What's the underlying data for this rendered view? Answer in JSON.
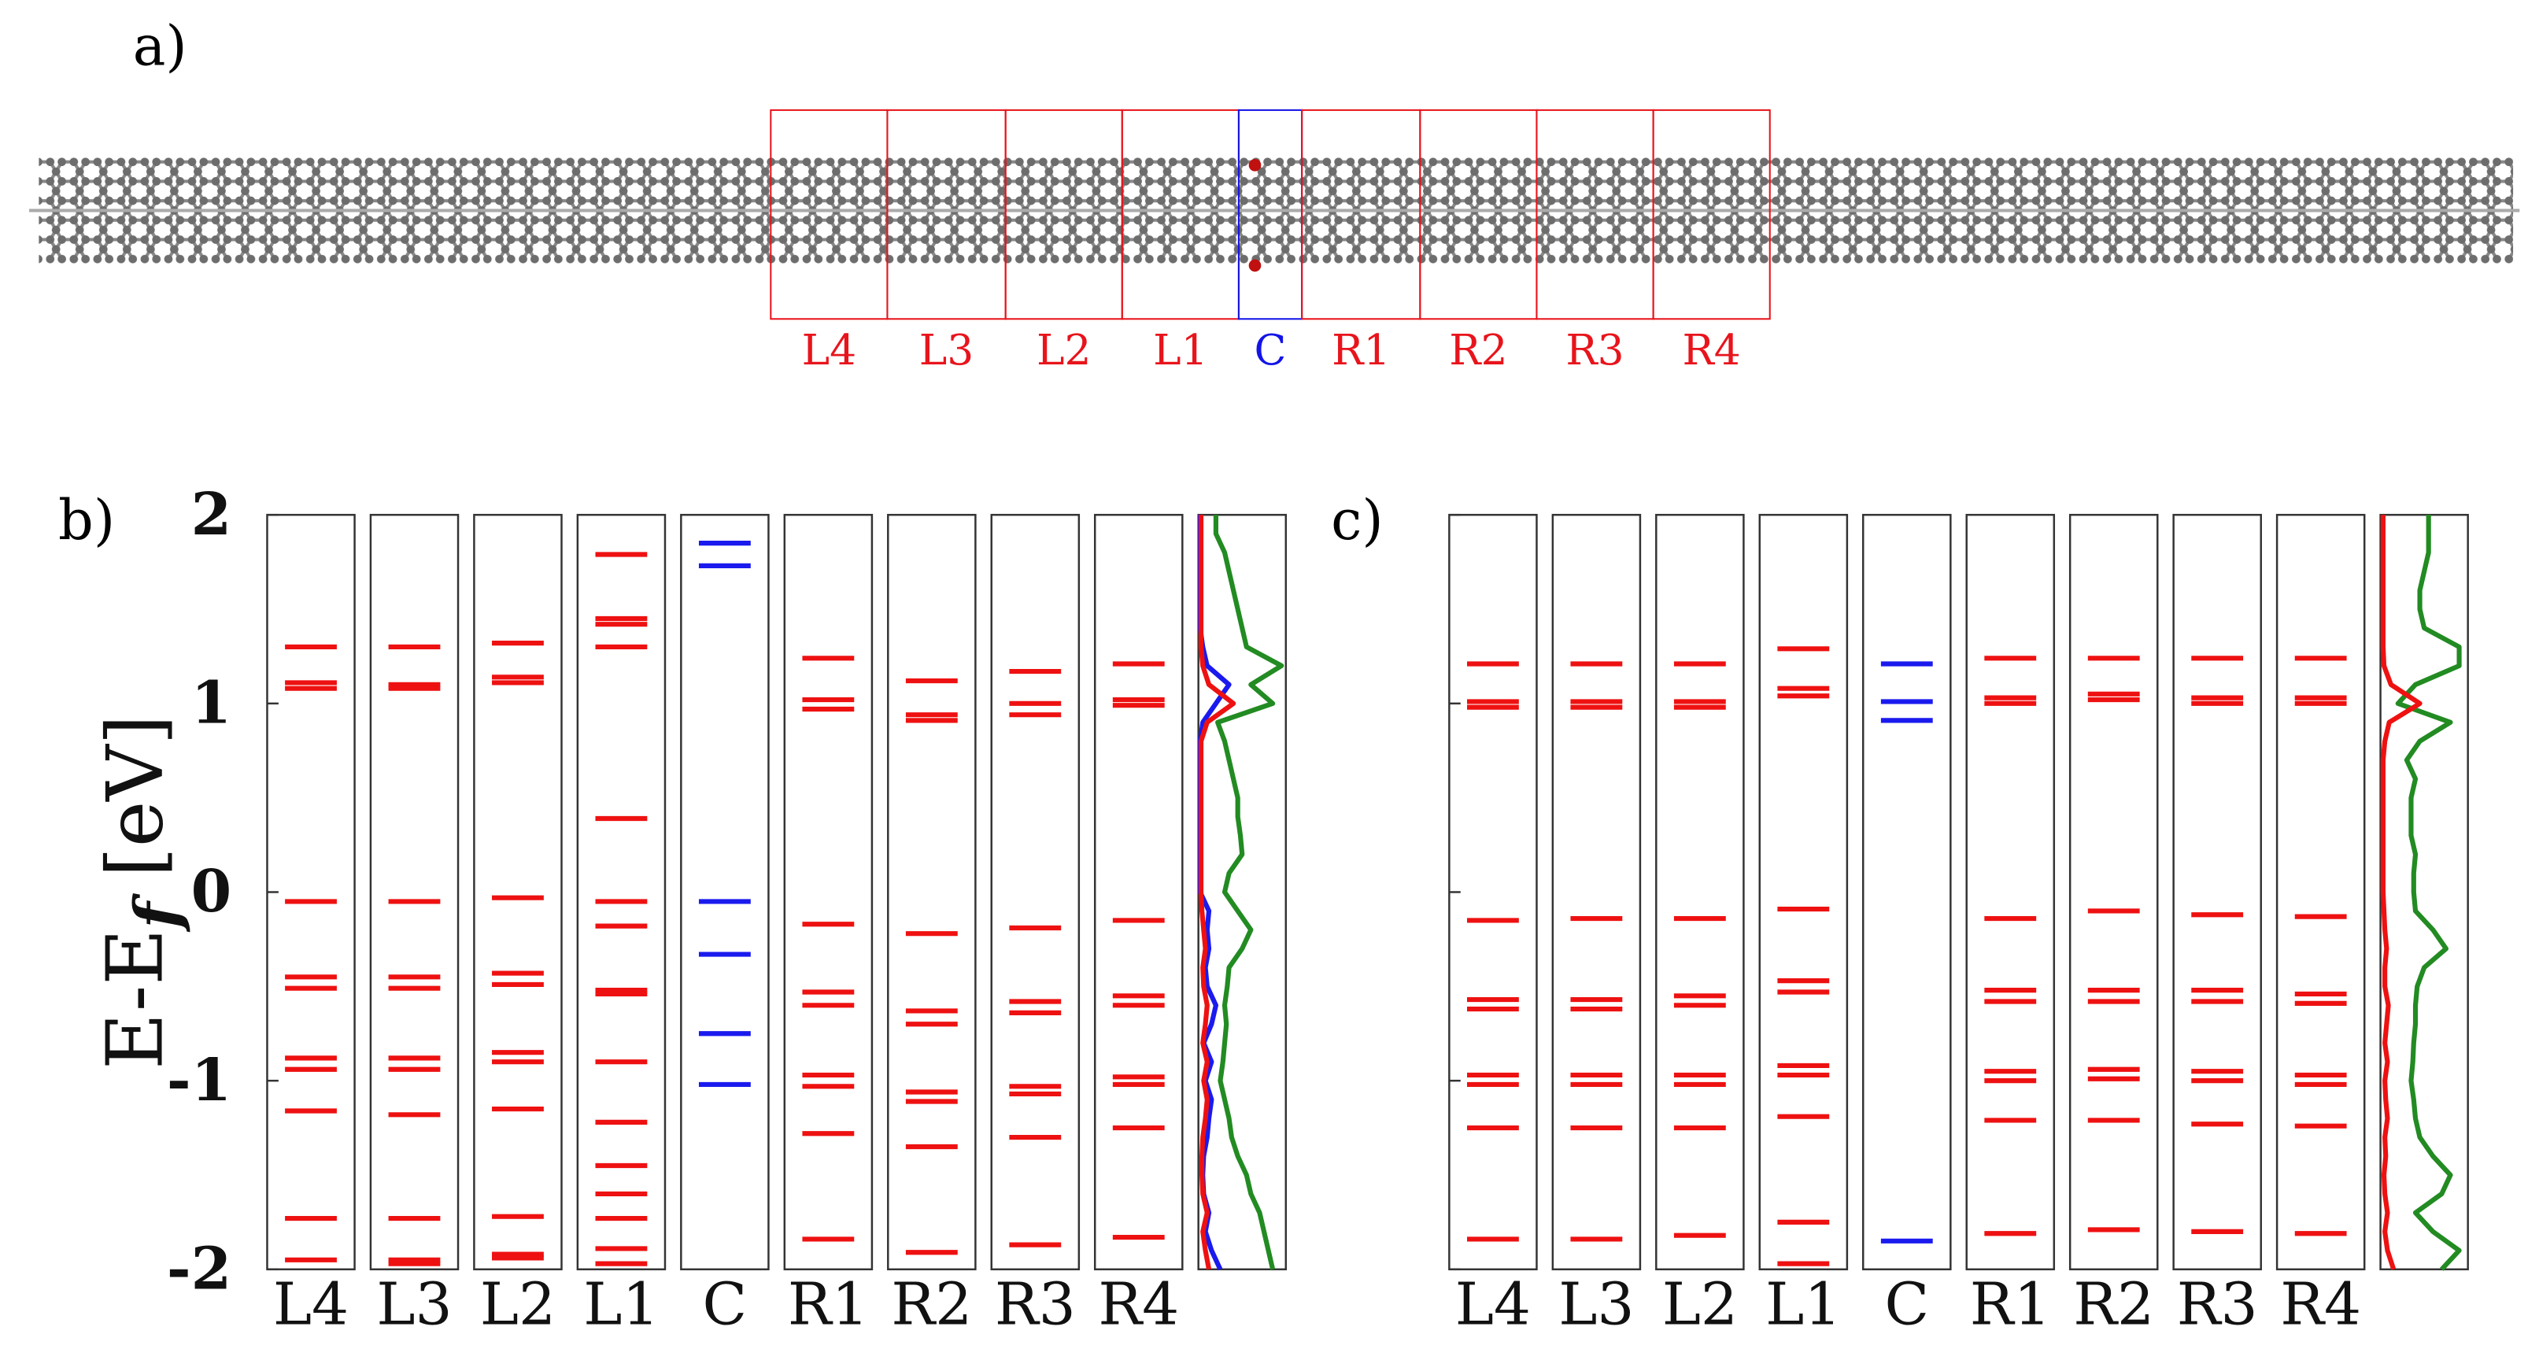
{
  "panel_labels": [
    "a)",
    "b)",
    "c)"
  ],
  "ribbon": {
    "regions": [
      {
        "label": "L4",
        "color": "#e8141c"
      },
      {
        "label": "L3",
        "color": "#e8141c"
      },
      {
        "label": "L2",
        "color": "#e8141c"
      },
      {
        "label": "L1",
        "color": "#e8141c"
      },
      {
        "label": "C",
        "color": "#1414e8"
      },
      {
        "label": "R1",
        "color": "#e8141c"
      },
      {
        "label": "R2",
        "color": "#e8141c"
      },
      {
        "label": "R3",
        "color": "#e8141c"
      },
      {
        "label": "R4",
        "color": "#e8141c"
      }
    ]
  },
  "chart_data": [
    {
      "type": "levels",
      "ylabel": {
        "main": "E-E",
        "sub": "f",
        "unit": " [eV]"
      },
      "ylim": [
        -2,
        2
      ],
      "yticks": [
        2,
        1,
        0,
        -1,
        -2
      ],
      "show_tick_labels": true,
      "columns": [
        {
          "name": "L4",
          "color": "#ee1111",
          "values": [
            1.3,
            1.11,
            1.08,
            -0.05,
            -0.45,
            -0.51,
            -0.88,
            -0.94,
            -1.16,
            -1.73,
            -1.95
          ]
        },
        {
          "name": "L3",
          "color": "#ee1111",
          "values": [
            1.3,
            1.1,
            1.08,
            -0.05,
            -0.45,
            -0.51,
            -0.88,
            -0.94,
            -1.18,
            -1.73,
            -1.95,
            -1.97
          ]
        },
        {
          "name": "L2",
          "color": "#ee1111",
          "values": [
            1.32,
            1.14,
            1.11,
            -0.03,
            -0.43,
            -0.49,
            -0.85,
            -0.9,
            -1.15,
            -1.72,
            -1.92,
            -1.94
          ]
        },
        {
          "name": "L1",
          "color": "#ee1111",
          "values": [
            1.79,
            1.45,
            1.42,
            1.3,
            0.39,
            -0.05,
            -0.18,
            -0.52,
            -0.54,
            -0.9,
            -1.22,
            -1.45,
            -1.6,
            -1.73,
            -1.89,
            -1.97
          ]
        },
        {
          "name": "C",
          "color": "#1a1aee",
          "values": [
            1.85,
            1.73,
            -0.05,
            -0.33,
            -0.75,
            -1.02
          ]
        },
        {
          "name": "R1",
          "color": "#ee1111",
          "values": [
            1.24,
            1.02,
            0.97,
            -0.17,
            -0.53,
            -0.6,
            -0.97,
            -1.03,
            -1.28,
            -1.84
          ]
        },
        {
          "name": "R2",
          "color": "#ee1111",
          "values": [
            1.12,
            0.94,
            0.91,
            -0.22,
            -0.63,
            -0.7,
            -1.06,
            -1.11,
            -1.35,
            -1.91
          ]
        },
        {
          "name": "R3",
          "color": "#ee1111",
          "values": [
            1.17,
            1.0,
            0.94,
            -0.19,
            -0.58,
            -0.64,
            -1.03,
            -1.07,
            -1.3,
            -1.87
          ]
        },
        {
          "name": "R4",
          "color": "#ee1111",
          "values": [
            1.21,
            1.02,
            0.99,
            -0.15,
            -0.55,
            -0.6,
            -0.98,
            -1.02,
            -1.25,
            -1.83
          ]
        }
      ],
      "dos": {
        "xlim": [
          0,
          1
        ],
        "energy": [
          -2.0,
          -1.9,
          -1.8,
          -1.7,
          -1.6,
          -1.5,
          -1.4,
          -1.3,
          -1.2,
          -1.1,
          -1.0,
          -0.9,
          -0.8,
          -0.7,
          -0.6,
          -0.5,
          -0.4,
          -0.3,
          -0.2,
          -0.1,
          0.0,
          0.1,
          0.2,
          0.3,
          0.4,
          0.5,
          0.6,
          0.7,
          0.8,
          0.9,
          1.0,
          1.1,
          1.2,
          1.3,
          1.4,
          1.5,
          1.6,
          1.7,
          1.8,
          1.9,
          2.0
        ],
        "series": [
          {
            "color": "#228b22",
            "values": [
              0.85,
              0.8,
              0.75,
              0.7,
              0.6,
              0.55,
              0.45,
              0.38,
              0.35,
              0.3,
              0.25,
              0.28,
              0.3,
              0.32,
              0.3,
              0.33,
              0.35,
              0.5,
              0.6,
              0.45,
              0.3,
              0.35,
              0.5,
              0.48,
              0.45,
              0.45,
              0.4,
              0.35,
              0.3,
              0.22,
              0.85,
              0.6,
              0.95,
              0.55,
              0.5,
              0.45,
              0.4,
              0.35,
              0.3,
              0.2,
              0.2
            ]
          },
          {
            "color": "#1a1aee",
            "values": [
              0.25,
              0.15,
              0.08,
              0.12,
              0.06,
              0.05,
              0.06,
              0.1,
              0.12,
              0.15,
              0.08,
              0.15,
              0.06,
              0.15,
              0.2,
              0.1,
              0.08,
              0.12,
              0.1,
              0.12,
              0.02,
              0.02,
              0.02,
              0.02,
              0.02,
              0.02,
              0.02,
              0.02,
              0.02,
              0.05,
              0.2,
              0.35,
              0.1,
              0.05,
              0.02,
              0.02,
              0.02,
              0.02,
              0.02,
              0.02,
              0.02
            ]
          },
          {
            "color": "#ee1111",
            "values": [
              0.12,
              0.08,
              0.05,
              0.1,
              0.05,
              0.04,
              0.04,
              0.05,
              0.08,
              0.1,
              0.06,
              0.1,
              0.05,
              0.08,
              0.1,
              0.06,
              0.05,
              0.08,
              0.06,
              0.04,
              0.03,
              0.03,
              0.03,
              0.03,
              0.03,
              0.03,
              0.03,
              0.03,
              0.03,
              0.1,
              0.4,
              0.12,
              0.05,
              0.03,
              0.03,
              0.03,
              0.03,
              0.03,
              0.03,
              0.03,
              0.03
            ]
          }
        ]
      }
    },
    {
      "type": "levels",
      "ylim": [
        -2,
        2
      ],
      "yticks": [
        2,
        1,
        0,
        -1,
        -2
      ],
      "show_tick_labels": false,
      "columns": [
        {
          "name": "L4",
          "color": "#ee1111",
          "values": [
            1.21,
            1.01,
            0.98,
            -0.15,
            -0.57,
            -0.62,
            -0.97,
            -1.02,
            -1.25,
            -1.84
          ]
        },
        {
          "name": "L3",
          "color": "#ee1111",
          "values": [
            1.21,
            1.01,
            0.98,
            -0.14,
            -0.57,
            -0.62,
            -0.97,
            -1.02,
            -1.25,
            -1.84
          ]
        },
        {
          "name": "L2",
          "color": "#ee1111",
          "values": [
            1.21,
            1.01,
            0.98,
            -0.14,
            -0.55,
            -0.6,
            -0.97,
            -1.02,
            -1.25,
            -1.82
          ]
        },
        {
          "name": "L1",
          "color": "#ee1111",
          "values": [
            1.29,
            1.08,
            1.04,
            -0.09,
            -0.47,
            -0.53,
            -0.92,
            -0.97,
            -1.19,
            -1.75,
            -1.97
          ]
        },
        {
          "name": "C",
          "color": "#1a1aee",
          "values": [
            1.21,
            1.01,
            0.91,
            -1.85
          ]
        },
        {
          "name": "R1",
          "color": "#ee1111",
          "values": [
            1.24,
            1.03,
            1.0,
            -0.14,
            -0.52,
            -0.58,
            -0.95,
            -1.0,
            -1.21,
            -1.81
          ]
        },
        {
          "name": "R2",
          "color": "#ee1111",
          "values": [
            1.24,
            1.05,
            1.02,
            -0.1,
            -0.52,
            -0.58,
            -0.94,
            -0.99,
            -1.21,
            -1.79
          ]
        },
        {
          "name": "R3",
          "color": "#ee1111",
          "values": [
            1.24,
            1.03,
            1.0,
            -0.12,
            -0.52,
            -0.58,
            -0.95,
            -1.0,
            -1.23,
            -1.8
          ]
        },
        {
          "name": "R4",
          "color": "#ee1111",
          "values": [
            1.24,
            1.03,
            1.0,
            -0.13,
            -0.54,
            -0.59,
            -0.97,
            -1.02,
            -1.24,
            -1.81
          ]
        }
      ],
      "dos": {
        "xlim": [
          0,
          1
        ],
        "energy": [
          -2.0,
          -1.9,
          -1.8,
          -1.7,
          -1.6,
          -1.5,
          -1.4,
          -1.3,
          -1.2,
          -1.1,
          -1.0,
          -0.9,
          -0.8,
          -0.7,
          -0.6,
          -0.5,
          -0.4,
          -0.3,
          -0.2,
          -0.1,
          0.0,
          0.1,
          0.2,
          0.3,
          0.4,
          0.5,
          0.6,
          0.7,
          0.8,
          0.9,
          1.0,
          1.1,
          1.2,
          1.3,
          1.4,
          1.5,
          1.6,
          1.7,
          1.8,
          1.9,
          2.0
        ],
        "series": [
          {
            "color": "#228b22",
            "values": [
              0.7,
              0.9,
              0.6,
              0.4,
              0.7,
              0.8,
              0.6,
              0.45,
              0.4,
              0.38,
              0.35,
              0.37,
              0.38,
              0.4,
              0.4,
              0.42,
              0.5,
              0.75,
              0.6,
              0.4,
              0.38,
              0.38,
              0.4,
              0.35,
              0.35,
              0.35,
              0.4,
              0.3,
              0.45,
              0.8,
              0.2,
              0.4,
              0.9,
              0.9,
              0.5,
              0.45,
              0.45,
              0.5,
              0.55,
              0.55,
              0.55
            ]
          },
          {
            "color": "#ee1111",
            "values": [
              0.15,
              0.08,
              0.05,
              0.08,
              0.05,
              0.04,
              0.06,
              0.05,
              0.08,
              0.06,
              0.05,
              0.08,
              0.05,
              0.07,
              0.09,
              0.05,
              0.05,
              0.07,
              0.05,
              0.04,
              0.03,
              0.03,
              0.03,
              0.03,
              0.03,
              0.03,
              0.03,
              0.03,
              0.05,
              0.1,
              0.45,
              0.12,
              0.04,
              0.03,
              0.03,
              0.03,
              0.03,
              0.03,
              0.03,
              0.03,
              0.03
            ]
          }
        ]
      }
    }
  ]
}
